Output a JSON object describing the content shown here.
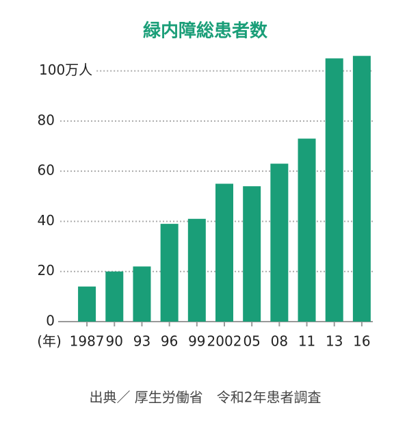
{
  "chart_data": {
    "type": "bar",
    "title": "緑内障総患者数",
    "categories": [
      "1987",
      "90",
      "93",
      "96",
      "99",
      "2002",
      "05",
      "08",
      "11",
      "13",
      "16"
    ],
    "values": [
      14,
      20,
      22,
      39,
      41,
      55,
      54,
      63,
      73,
      105,
      106
    ],
    "color": "#1a9e78",
    "xlabel": "(年)",
    "ylim": [
      0,
      110
    ],
    "yticks": [
      0,
      20,
      40,
      60,
      80,
      {
        "value": 100,
        "label": "100万人"
      }
    ],
    "grid": true,
    "source": "出典／ 厚生労働省　令和2年患者調査"
  }
}
